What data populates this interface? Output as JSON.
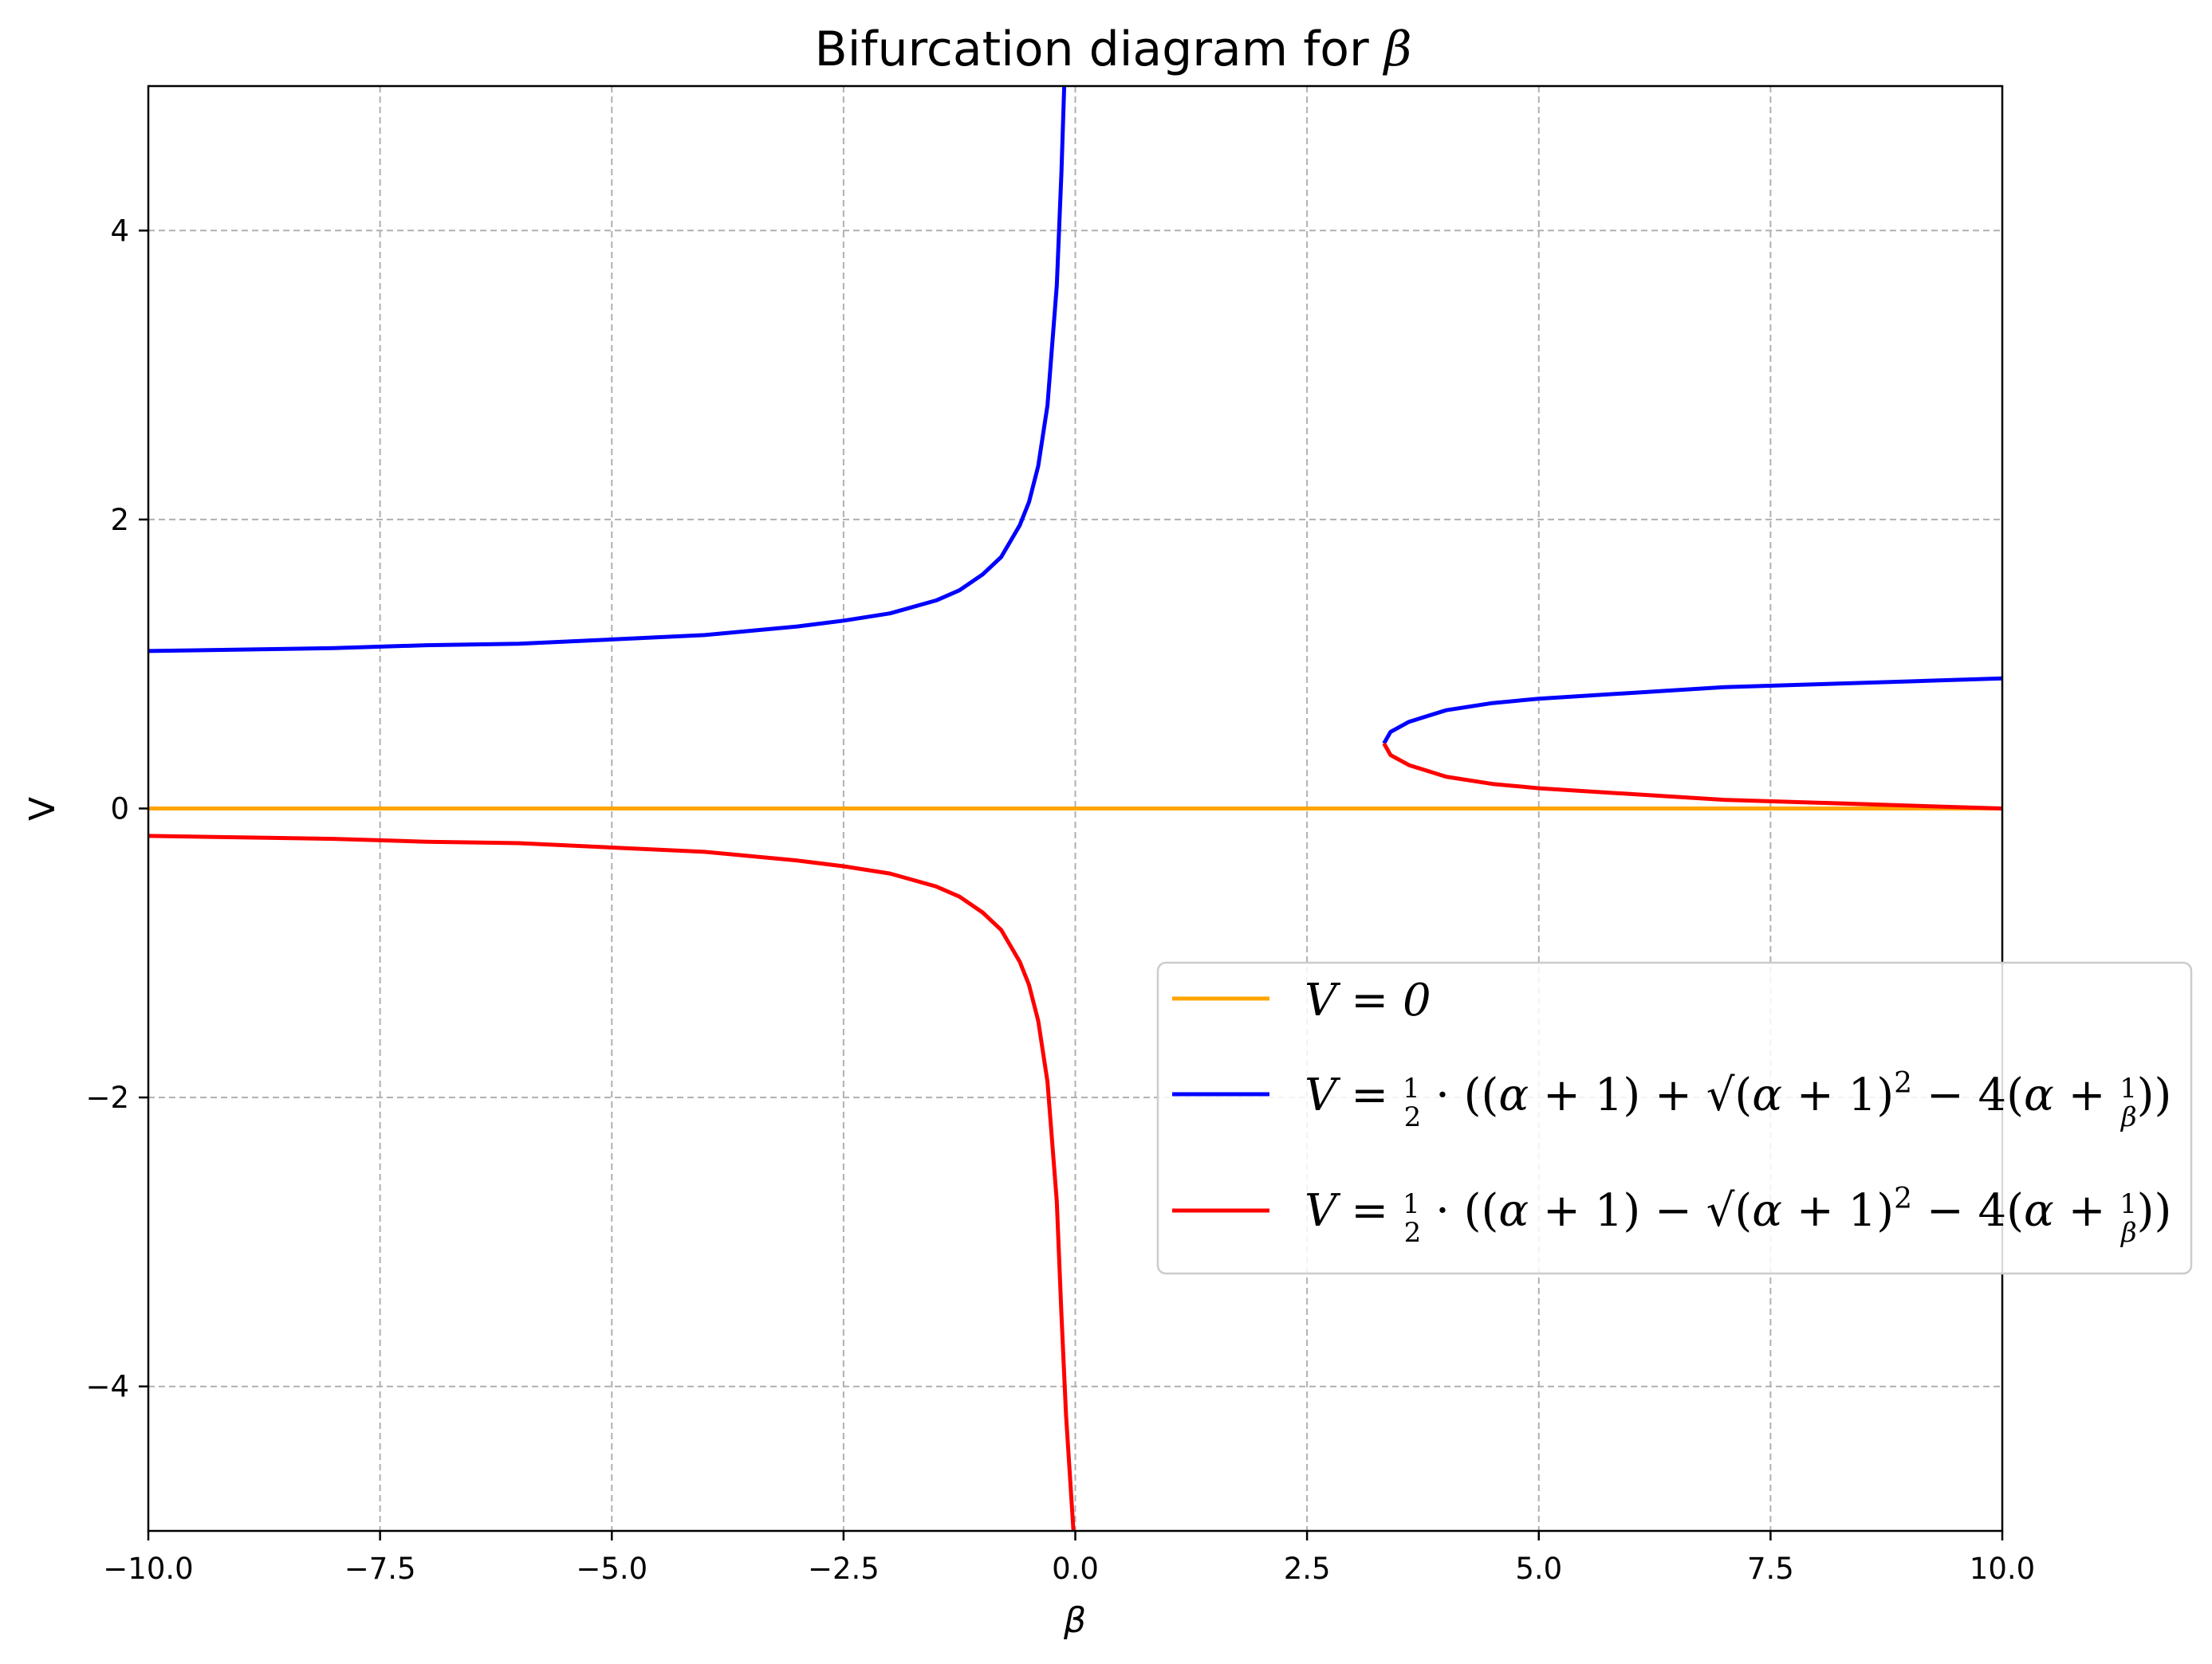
{
  "chart_data": {
    "type": "line",
    "title": "Bifurcation diagram for β",
    "title_prefix": "Bifurcation diagram for ",
    "title_symbol": "β",
    "xlabel": "β",
    "ylabel": "V",
    "xlim": [
      -10,
      10
    ],
    "ylim": [
      -5,
      5
    ],
    "grid": true,
    "legend_position": "center-right",
    "x_ticks": [
      -10,
      -7.5,
      -5,
      -2.5,
      0,
      2.5,
      5,
      7.5,
      10
    ],
    "x_tick_labels": [
      "−10.0",
      "−7.5",
      "−5.0",
      "−2.5",
      "0.0",
      "2.5",
      "5.0",
      "7.5",
      "10.0"
    ],
    "y_ticks": [
      -4,
      -2,
      0,
      2,
      4
    ],
    "y_tick_labels": [
      "−4",
      "−2",
      "0",
      "2",
      "4"
    ],
    "series": [
      {
        "key": "zero",
        "name": "V = 0",
        "color": "#FFA500",
        "points": [
          [
            -10,
            0
          ],
          [
            10,
            0
          ]
        ]
      },
      {
        "key": "plus",
        "name": "V = ½·((α+1) + √((α+1)² − 4(α + 1/β)))",
        "color": "#0000FF",
        "points": [
          [
            -10,
            1.09
          ],
          [
            -9,
            1.1
          ],
          [
            -8,
            1.11
          ],
          [
            -7,
            1.13
          ],
          [
            -6,
            1.14
          ],
          [
            -5,
            1.17
          ],
          [
            -4,
            1.2
          ],
          [
            -3,
            1.26
          ],
          [
            -2.5,
            1.3
          ],
          [
            -2,
            1.35
          ],
          [
            -1.5,
            1.44
          ],
          [
            -1.25,
            1.51
          ],
          [
            -1,
            1.62
          ],
          [
            -0.8,
            1.74
          ],
          [
            -0.6,
            1.96
          ],
          [
            -0.5,
            2.12
          ],
          [
            -0.4,
            2.37
          ],
          [
            -0.3,
            2.79
          ],
          [
            -0.2,
            3.62
          ],
          [
            -0.15,
            4.4
          ],
          [
            -0.12,
            5.0
          ]
        ],
        "points2": [
          [
            3.33,
            0.45
          ],
          [
            3.4,
            0.53
          ],
          [
            3.6,
            0.6
          ],
          [
            4,
            0.68
          ],
          [
            4.5,
            0.73
          ],
          [
            5,
            0.76
          ],
          [
            6,
            0.8
          ],
          [
            7,
            0.84
          ],
          [
            8,
            0.86
          ],
          [
            9,
            0.88
          ],
          [
            10,
            0.9
          ]
        ]
      },
      {
        "key": "minus",
        "name": "V = ½·((α+1) − √((α+1)² − 4(α + 1/β)))",
        "color": "#FF0000",
        "points": [
          [
            -10,
            -0.19
          ],
          [
            -9,
            -0.2
          ],
          [
            -8,
            -0.21
          ],
          [
            -7,
            -0.23
          ],
          [
            -6,
            -0.24
          ],
          [
            -5,
            -0.27
          ],
          [
            -4,
            -0.3
          ],
          [
            -3,
            -0.36
          ],
          [
            -2.5,
            -0.4
          ],
          [
            -2,
            -0.45
          ],
          [
            -1.5,
            -0.54
          ],
          [
            -1.25,
            -0.61
          ],
          [
            -1,
            -0.72
          ],
          [
            -0.8,
            -0.84
          ],
          [
            -0.6,
            -1.06
          ],
          [
            -0.5,
            -1.22
          ],
          [
            -0.4,
            -1.47
          ],
          [
            -0.3,
            -1.89
          ],
          [
            -0.2,
            -2.72
          ],
          [
            -0.15,
            -3.5
          ],
          [
            -0.1,
            -4.2
          ],
          [
            -0.02,
            -5.0
          ]
        ],
        "points2": [
          [
            3.33,
            0.45
          ],
          [
            3.4,
            0.37
          ],
          [
            3.6,
            0.3
          ],
          [
            4,
            0.22
          ],
          [
            4.5,
            0.17
          ],
          [
            5,
            0.14
          ],
          [
            6,
            0.1
          ],
          [
            7,
            0.06
          ],
          [
            8,
            0.04
          ],
          [
            9,
            0.02
          ],
          [
            10,
            0.0
          ]
        ]
      }
    ]
  }
}
